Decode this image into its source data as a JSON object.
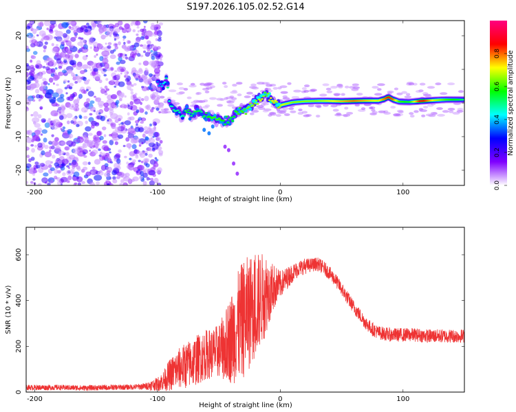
{
  "title": "S197.2026.105.02.52.G14",
  "chart_data": [
    {
      "type": "heatmap",
      "name": "spectrogram",
      "xlabel": "Height of straight line (km)",
      "ylabel": "Frequency (Hz)",
      "xlim": [
        -207,
        150
      ],
      "ylim": [
        -24.5,
        24.5
      ],
      "xticks": [
        -200,
        -100,
        0,
        100
      ],
      "yticks": [
        -20,
        -10,
        0,
        10,
        20
      ],
      "xtick_labels": [
        "-200",
        "-100",
        "0",
        "100"
      ],
      "ytick_labels": [
        "-20",
        "-10",
        "0",
        "10",
        "20"
      ],
      "colorbar": {
        "label": "Normalized spectral amplitude",
        "range": [
          0.0,
          1.0
        ],
        "ticks": [
          0.0,
          0.2,
          0.4,
          0.6,
          0.8
        ],
        "tick_labels": [
          "0.0",
          "0.2",
          "0.4",
          "0.6",
          "0.8"
        ],
        "colormap": [
          "#ffffff",
          "#7f00ff",
          "#0000ff",
          "#00ffff",
          "#00ff00",
          "#ffff00",
          "#ff0000",
          "#ff0080"
        ]
      },
      "noise_region_km": [
        -207,
        -100
      ],
      "ridge": [
        {
          "x": -100,
          "y": 6,
          "a": 0.35
        },
        {
          "x": -96,
          "y": 5,
          "a": 0.4
        },
        {
          "x": -92,
          "y": 7,
          "a": 0.5
        },
        {
          "x": -90,
          "y": -1,
          "a": 0.45
        },
        {
          "x": -85,
          "y": -2,
          "a": 0.5
        },
        {
          "x": -80,
          "y": -4,
          "a": 0.45
        },
        {
          "x": -76,
          "y": -2,
          "a": 0.55
        },
        {
          "x": -72,
          "y": -4,
          "a": 0.5
        },
        {
          "x": -68,
          "y": -2,
          "a": 0.55
        },
        {
          "x": -64,
          "y": -3,
          "a": 0.5
        },
        {
          "x": -60,
          "y": -4,
          "a": 0.55
        },
        {
          "x": -55,
          "y": -4,
          "a": 0.6
        },
        {
          "x": -50,
          "y": -5,
          "a": 0.6
        },
        {
          "x": -45,
          "y": -6,
          "a": 0.55
        },
        {
          "x": -40,
          "y": -5,
          "a": 0.55
        },
        {
          "x": -35,
          "y": -3,
          "a": 0.6
        },
        {
          "x": -30,
          "y": -2,
          "a": 0.6
        },
        {
          "x": -25,
          "y": -1,
          "a": 0.65
        },
        {
          "x": -20,
          "y": 0.5,
          "a": 0.65
        },
        {
          "x": -15,
          "y": 1.5,
          "a": 0.7
        },
        {
          "x": -12,
          "y": 3,
          "a": 0.6
        },
        {
          "x": -8,
          "y": 1,
          "a": 0.7
        },
        {
          "x": -5,
          "y": 0.3,
          "a": 0.75
        },
        {
          "x": -2,
          "y": -1,
          "a": 0.65
        },
        {
          "x": 2,
          "y": -0.5,
          "a": 0.7
        },
        {
          "x": 10,
          "y": 0.2,
          "a": 0.65
        },
        {
          "x": 20,
          "y": 0.5,
          "a": 0.65
        },
        {
          "x": 30,
          "y": 0.6,
          "a": 0.65
        },
        {
          "x": 40,
          "y": 0.6,
          "a": 0.7
        },
        {
          "x": 50,
          "y": 0.5,
          "a": 0.75
        },
        {
          "x": 60,
          "y": 0.6,
          "a": 0.8
        },
        {
          "x": 70,
          "y": 0.7,
          "a": 0.75
        },
        {
          "x": 80,
          "y": 0.7,
          "a": 0.7
        },
        {
          "x": 85,
          "y": 1.2,
          "a": 0.8
        },
        {
          "x": 88,
          "y": 1.8,
          "a": 0.85
        },
        {
          "x": 92,
          "y": 1.0,
          "a": 0.8
        },
        {
          "x": 97,
          "y": 0.4,
          "a": 0.6
        },
        {
          "x": 105,
          "y": 0.3,
          "a": 0.55
        },
        {
          "x": 115,
          "y": 0.6,
          "a": 0.9
        },
        {
          "x": 125,
          "y": 0.8,
          "a": 0.7
        },
        {
          "x": 135,
          "y": 1.0,
          "a": 0.6
        },
        {
          "x": 145,
          "y": 1.0,
          "a": 0.55
        },
        {
          "x": 150,
          "y": 1.0,
          "a": 0.5
        }
      ]
    },
    {
      "type": "line",
      "name": "snr",
      "xlabel": "Height of straight line (km)",
      "ylabel": "SNR (10 * v/v)",
      "xlim": [
        -207,
        150
      ],
      "ylim": [
        0,
        720
      ],
      "xticks": [
        -200,
        -100,
        0,
        100
      ],
      "yticks": [
        0,
        200,
        400,
        600
      ],
      "xtick_labels": [
        "-200",
        "-100",
        "0",
        "100"
      ],
      "ytick_labels": [
        "0",
        "200",
        "400",
        "600"
      ],
      "series": [
        {
          "name": "SNR",
          "color": "#ee3333",
          "x": [
            -207,
            -180,
            -160,
            -140,
            -120,
            -110,
            -100,
            -95,
            -90,
            -85,
            -80,
            -75,
            -70,
            -65,
            -60,
            -55,
            -50,
            -45,
            -40,
            -35,
            -30,
            -25,
            -20,
            -15,
            -12,
            -10,
            -5,
            0,
            5,
            10,
            15,
            20,
            25,
            30,
            35,
            40,
            45,
            50,
            55,
            60,
            65,
            70,
            75,
            80,
            90,
            100,
            110,
            120,
            130,
            140,
            150
          ],
          "y": [
            20,
            20,
            18,
            20,
            22,
            25,
            35,
            50,
            75,
            95,
            110,
            120,
            135,
            150,
            165,
            170,
            180,
            200,
            235,
            280,
            320,
            350,
            380,
            410,
            430,
            440,
            460,
            470,
            495,
            520,
            540,
            550,
            555,
            560,
            545,
            520,
            490,
            450,
            410,
            370,
            335,
            300,
            275,
            260,
            250,
            250,
            250,
            245,
            245,
            245,
            245
          ],
          "noise": [
            12,
            12,
            12,
            12,
            12,
            15,
            30,
            45,
            70,
            85,
            95,
            105,
            110,
            110,
            110,
            110,
            120,
            150,
            200,
            240,
            260,
            250,
            230,
            200,
            190,
            150,
            100,
            60,
            50,
            40,
            35,
            35,
            30,
            30,
            30,
            30,
            30,
            30,
            30,
            30,
            30,
            30,
            30,
            30,
            30,
            30,
            30,
            30,
            30,
            30,
            30
          ]
        }
      ]
    }
  ]
}
